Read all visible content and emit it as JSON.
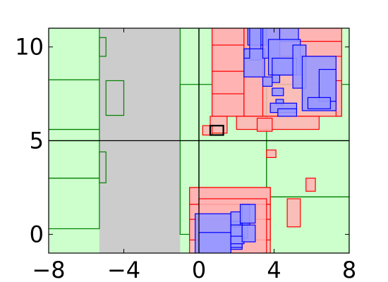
{
  "chart_data": {
    "type": "rectangles",
    "xlim": [
      -8,
      8
    ],
    "ylim": [
      -1,
      11
    ],
    "grid": false,
    "colors": {
      "background": "#ccffcc",
      "gray_fill": "#cccccc",
      "green_edge": "#008000",
      "red_fill": "#ffb3b3",
      "red_edge": "#ff0000",
      "blue_fill": "#9999ff",
      "blue_edge": "#0000ff",
      "axis_line": "#000000",
      "highlight_edge": "#000000"
    },
    "x_ticks": [
      {
        "value": -8,
        "label": "−8"
      },
      {
        "value": -4,
        "label": "−4"
      },
      {
        "value": 0,
        "label": "0"
      },
      {
        "value": 4,
        "label": "4"
      },
      {
        "value": 8,
        "label": "8"
      }
    ],
    "y_ticks": [
      {
        "value": 0,
        "label": "0"
      },
      {
        "value": 5,
        "label": "5"
      },
      {
        "value": 10,
        "label": "10"
      }
    ],
    "reference_lines": {
      "x": [
        0
      ],
      "y": [
        5
      ]
    },
    "gray_regions": [
      {
        "x0": -5.3,
        "x1": -1.0,
        "y0": -1.0,
        "y1": 11.0
      }
    ],
    "green_cells": [
      {
        "x0": -8.0,
        "x1": -5.3,
        "y0": 8.25,
        "y1": 11.0
      },
      {
        "x0": -8.0,
        "x1": -5.3,
        "y0": 5.6,
        "y1": 8.25
      },
      {
        "x0": -8.0,
        "x1": -5.3,
        "y0": 5.0,
        "y1": 5.6
      },
      {
        "x0": -8.0,
        "x1": -5.3,
        "y0": 3.0,
        "y1": 5.0
      },
      {
        "x0": -8.0,
        "x1": -5.3,
        "y0": 0.3,
        "y1": 3.0
      },
      {
        "x0": -5.3,
        "x1": -4.95,
        "y0": 9.5,
        "y1": 10.5
      },
      {
        "x0": -4.95,
        "x1": -4.0,
        "y0": 6.35,
        "y1": 8.2
      },
      {
        "x0": -5.3,
        "x1": -4.95,
        "y0": 2.75,
        "y1": 4.4
      },
      {
        "x0": -1.0,
        "x1": 0.0,
        "y0": 0.0,
        "y1": 11.0
      },
      {
        "x0": 0.0,
        "x1": 3.6,
        "y0": 0.0,
        "y1": 11.0
      },
      {
        "x0": -1.0,
        "x1": 8.0,
        "y0": 5.0,
        "y1": 8.0
      },
      {
        "x0": 3.6,
        "x1": 8.0,
        "y0": 2.0,
        "y1": 5.0
      },
      {
        "x0": 3.6,
        "x1": 8.0,
        "y0": -1.0,
        "y1": 2.0
      }
    ],
    "red_cells": [
      {
        "x0": 0.7,
        "x1": 7.6,
        "y0": 6.3,
        "y1": 11.0
      },
      {
        "x0": 0.7,
        "x1": 2.4,
        "y0": 6.3,
        "y1": 11.0
      },
      {
        "x0": 0.7,
        "x1": 2.4,
        "y0": 8.7,
        "y1": 10.1
      },
      {
        "x0": 0.7,
        "x1": 2.4,
        "y0": 7.5,
        "y1": 8.7
      },
      {
        "x0": 2.4,
        "x1": 3.4,
        "y0": 6.3,
        "y1": 11.0
      },
      {
        "x0": 3.4,
        "x1": 7.6,
        "y0": 10.3,
        "y1": 11.0
      },
      {
        "x0": 3.4,
        "x1": 7.6,
        "y0": 9.5,
        "y1": 10.3
      },
      {
        "x0": 7.3,
        "x1": 7.6,
        "y0": 6.3,
        "y1": 8.2
      },
      {
        "x0": 0.6,
        "x1": 1.5,
        "y0": 5.4,
        "y1": 6.3
      },
      {
        "x0": 0.2,
        "x1": 0.7,
        "y0": 5.3,
        "y1": 5.8
      },
      {
        "x0": 2.0,
        "x1": 6.4,
        "y0": 5.6,
        "y1": 6.3
      },
      {
        "x0": 3.1,
        "x1": 3.9,
        "y0": 5.5,
        "y1": 6.2
      },
      {
        "x0": 3.6,
        "x1": 4.1,
        "y0": 4.1,
        "y1": 4.5
      },
      {
        "x0": 5.7,
        "x1": 6.2,
        "y0": 2.3,
        "y1": 3.0
      },
      {
        "x0": 4.7,
        "x1": 5.4,
        "y0": 0.4,
        "y1": 1.9
      },
      {
        "x0": -0.5,
        "x1": 3.8,
        "y0": -1.0,
        "y1": 2.5
      },
      {
        "x0": -0.5,
        "x1": 3.8,
        "y0": 1.6,
        "y1": 2.5
      },
      {
        "x0": -0.5,
        "x1": 3.8,
        "y0": 0.8,
        "y1": 1.6
      },
      {
        "x0": -0.5,
        "x1": 3.8,
        "y0": -0.3,
        "y1": 0.8
      },
      {
        "x0": 0.0,
        "x1": 3.6,
        "y0": -1.0,
        "y1": 1.9
      }
    ],
    "blue_cells": [
      {
        "x0": 2.6,
        "x1": 3.6,
        "y0": 10.1,
        "y1": 11.0
      },
      {
        "x0": 2.7,
        "x1": 3.3,
        "y0": 9.3,
        "y1": 11.0
      },
      {
        "x0": 2.4,
        "x1": 3.5,
        "y0": 8.4,
        "y1": 9.9
      },
      {
        "x0": 2.4,
        "x1": 2.7,
        "y0": 9.4,
        "y1": 9.9
      },
      {
        "x0": 3.4,
        "x1": 4.3,
        "y0": 9.4,
        "y1": 11.0
      },
      {
        "x0": 4.3,
        "x1": 5.3,
        "y0": 10.3,
        "y1": 11.0
      },
      {
        "x0": 3.7,
        "x1": 5.4,
        "y0": 8.5,
        "y1": 10.4
      },
      {
        "x0": 3.9,
        "x1": 5.2,
        "y0": 8.5,
        "y1": 9.4
      },
      {
        "x0": 5.0,
        "x1": 5.7,
        "y0": 7.8,
        "y1": 10.1
      },
      {
        "x0": 5.5,
        "x1": 7.3,
        "y0": 6.6,
        "y1": 9.5
      },
      {
        "x0": 6.4,
        "x1": 7.3,
        "y0": 7.1,
        "y1": 8.8
      },
      {
        "x0": 5.8,
        "x1": 7.0,
        "y0": 6.7,
        "y1": 7.3
      },
      {
        "x0": 3.9,
        "x1": 4.3,
        "y0": 8.1,
        "y1": 8.5
      },
      {
        "x0": 3.4,
        "x1": 3.9,
        "y0": 7.9,
        "y1": 8.4
      },
      {
        "x0": 3.9,
        "x1": 4.5,
        "y0": 7.4,
        "y1": 7.8
      },
      {
        "x0": 4.1,
        "x1": 4.5,
        "y0": 6.9,
        "y1": 7.2
      },
      {
        "x0": 3.8,
        "x1": 5.2,
        "y0": 6.5,
        "y1": 7.0
      },
      {
        "x0": 4.2,
        "x1": 5.2,
        "y0": 6.3,
        "y1": 6.7
      },
      {
        "x0": -0.2,
        "x1": 1.7,
        "y0": -1.0,
        "y1": 1.1
      },
      {
        "x0": 0.0,
        "x1": 1.7,
        "y0": -1.0,
        "y1": 0.1
      },
      {
        "x0": 1.7,
        "x1": 2.3,
        "y0": -0.8,
        "y1": 0.7
      },
      {
        "x0": 1.7,
        "x1": 2.2,
        "y0": 0.4,
        "y1": 1.2
      },
      {
        "x0": 1.7,
        "x1": 2.3,
        "y0": -0.7,
        "y1": 0.5
      },
      {
        "x0": 2.3,
        "x1": 2.6,
        "y0": -0.2,
        "y1": 1.3
      },
      {
        "x0": 1.7,
        "x1": 2.4,
        "y0": -0.5,
        "y1": -0.1
      },
      {
        "x0": 2.3,
        "x1": 3.0,
        "y0": -0.4,
        "y1": 0.5
      },
      {
        "x0": 2.3,
        "x1": 2.7,
        "y0": 0.5,
        "y1": 1.6
      },
      {
        "x0": 2.2,
        "x1": 3.0,
        "y0": 0.6,
        "y1": 1.6
      }
    ],
    "highlight_box": {
      "x0": 0.6,
      "x1": 1.3,
      "y0": 5.3,
      "y1": 5.8
    }
  }
}
